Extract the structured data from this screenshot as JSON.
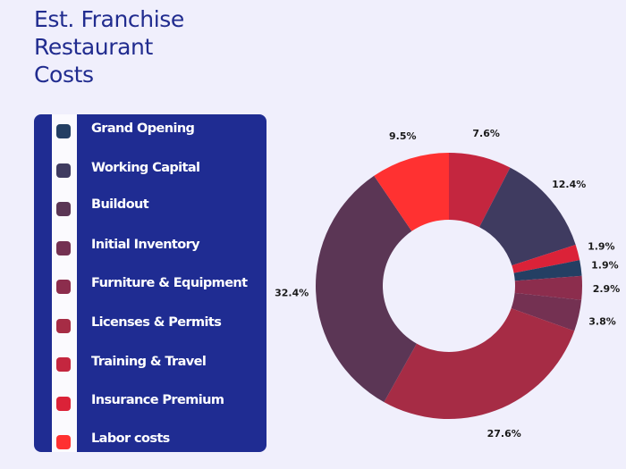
{
  "title_lines": [
    "Est. Franchise",
    "Restaurant",
    "Costs"
  ],
  "legend": {
    "items": [
      {
        "label": "Grand Opening",
        "color": "#243F63"
      },
      {
        "label": "Working Capital",
        "color": "#3F3B60"
      },
      {
        "label": "Buildout",
        "color": "#5B3655"
      },
      {
        "label": "Initial Inventory",
        "color": "#743152"
      },
      {
        "label": "Furniture & Equipment",
        "color": "#8C2D4D"
      },
      {
        "label": "Licenses & Permits",
        "color": "#A62C45"
      },
      {
        "label": "Training & Travel",
        "color": "#C4263F"
      },
      {
        "label": "Insurance Premium",
        "color": "#DB2238"
      },
      {
        "label": "Labor costs",
        "color": "#FF3131"
      }
    ]
  },
  "chart_data": {
    "type": "pie",
    "subtype": "donut",
    "title": "Est. Franchise Restaurant Costs",
    "categories": [
      "Training & Travel",
      "Working Capital",
      "Insurance Premium",
      "Grand Opening",
      "Furniture & Equipment",
      "Initial Inventory",
      "Licenses & Permits",
      "Buildout",
      "Labor costs"
    ],
    "values": [
      7.6,
      12.4,
      1.9,
      1.9,
      2.9,
      3.8,
      27.6,
      32.4,
      9.5
    ],
    "labels": [
      "7.6%",
      "12.4%",
      "1.9%",
      "1.9%",
      "2.9%",
      "3.8%",
      "27.6%",
      "32.4%",
      "9.5%"
    ],
    "colors": [
      "#C4263F",
      "#3F3B60",
      "#DB2238",
      "#243F63",
      "#8C2D4D",
      "#743152",
      "#A62C45",
      "#5B3655",
      "#FF3131"
    ],
    "start_angle": "12 o'clock",
    "direction": "clockwise",
    "legend_position": "left",
    "units": "percent"
  }
}
